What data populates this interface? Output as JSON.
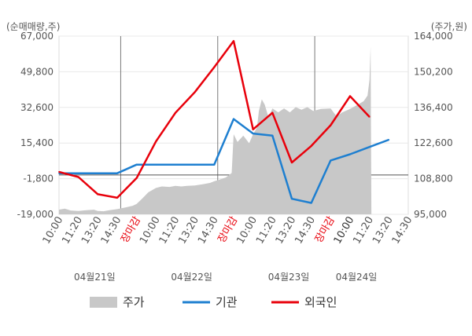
{
  "chart_data": {
    "type": "line",
    "left_unit_label": "(순매매량,주)",
    "right_unit_label": "(주가,원)",
    "left_axis": {
      "ticks": [
        "67,000",
        "49,800",
        "32,600",
        "15,400",
        "-1,800",
        "-19,000"
      ],
      "ylim": [
        -19000,
        67000
      ]
    },
    "right_axis": {
      "ticks": [
        "164,000",
        "150,200",
        "136,400",
        "122,600",
        "108,800",
        "95,000"
      ],
      "ylim": [
        95000,
        164000
      ]
    },
    "x_categories": [
      "10:00",
      "11:20",
      "13:20",
      "14:30",
      "장마감",
      "10:00",
      "11:20",
      "13:20",
      "14:30",
      "장마감",
      "10:00",
      "11:20",
      "13:20",
      "14:30",
      "장마감",
      "10:00",
      "11:20",
      "13:20",
      "14:30"
    ],
    "x_label_colors": [
      "#555555",
      "#555555",
      "#555555",
      "#555555",
      "#e8000b",
      "#555555",
      "#555555",
      "#555555",
      "#555555",
      "#e8000b",
      "#555555",
      "#555555",
      "#555555",
      "#555555",
      "#e8000b",
      "#333333",
      "#555555",
      "#555555",
      "#555555"
    ],
    "dates": [
      "04월21일",
      "04월22일",
      "04월23일",
      "04월24일"
    ],
    "series": [
      {
        "name": "기관",
        "color": "#1e7fd0",
        "axis": "left",
        "points": [
          [
            0,
            800
          ],
          [
            1,
            800
          ],
          [
            2,
            800
          ],
          [
            3,
            800
          ],
          [
            4,
            5000
          ],
          [
            5,
            5000
          ],
          [
            6,
            5000
          ],
          [
            7,
            5000
          ],
          [
            8,
            5000
          ],
          [
            9,
            27000
          ],
          [
            10,
            20000
          ],
          [
            11,
            19000
          ],
          [
            12,
            -11500
          ],
          [
            13,
            -13500
          ],
          [
            14,
            7000
          ],
          [
            15,
            10000
          ],
          [
            16,
            13500
          ],
          [
            17,
            17000
          ]
        ]
      },
      {
        "name": "외국인",
        "color": "#e8000b",
        "axis": "left",
        "points": [
          [
            0,
            1500
          ],
          [
            1,
            -1000
          ],
          [
            2,
            -9300
          ],
          [
            3,
            -11000
          ],
          [
            4,
            -1500
          ],
          [
            5,
            16200
          ],
          [
            6,
            30000
          ],
          [
            7,
            40000
          ],
          [
            8,
            52000
          ],
          [
            9,
            64600
          ],
          [
            10,
            22000
          ],
          [
            11,
            30000
          ],
          [
            12,
            6000
          ],
          [
            13,
            14000
          ],
          [
            14,
            24000
          ],
          [
            15,
            38000
          ],
          [
            16,
            28000
          ]
        ]
      },
      {
        "name": "주가",
        "color": "#c8c8c8",
        "axis": "right",
        "points": [
          [
            0,
            96800
          ],
          [
            0.3,
            97200
          ],
          [
            0.6,
            96500
          ],
          [
            1,
            96300
          ],
          [
            1.4,
            96600
          ],
          [
            1.8,
            96800
          ],
          [
            2,
            96300
          ],
          [
            2.3,
            96200
          ],
          [
            2.6,
            96600
          ],
          [
            3,
            97000
          ],
          [
            3.4,
            97600
          ],
          [
            3.8,
            98300
          ],
          [
            4,
            99000
          ],
          [
            4.3,
            101200
          ],
          [
            4.6,
            103500
          ],
          [
            5,
            105200
          ],
          [
            5.3,
            105800
          ],
          [
            5.7,
            105600
          ],
          [
            6,
            106000
          ],
          [
            6.3,
            105800
          ],
          [
            6.6,
            106000
          ],
          [
            7,
            106200
          ],
          [
            7.4,
            106600
          ],
          [
            7.8,
            107200
          ],
          [
            8,
            107800
          ],
          [
            8.3,
            108500
          ],
          [
            8.6,
            109300
          ],
          [
            8.9,
            111000
          ],
          [
            9,
            126000
          ],
          [
            9.2,
            123000
          ],
          [
            9.5,
            125500
          ],
          [
            9.8,
            122500
          ],
          [
            10,
            126000
          ],
          [
            10.2,
            128500
          ],
          [
            10.3,
            135000
          ],
          [
            10.45,
            139500
          ],
          [
            10.6,
            137500
          ],
          [
            10.8,
            132500
          ],
          [
            11,
            136000
          ],
          [
            11.3,
            134500
          ],
          [
            11.6,
            136000
          ],
          [
            11.9,
            134500
          ],
          [
            12.2,
            136500
          ],
          [
            12.5,
            135500
          ],
          [
            12.8,
            136500
          ],
          [
            13.1,
            135000
          ],
          [
            13.5,
            135800
          ],
          [
            14,
            136000
          ],
          [
            14.3,
            133000
          ],
          [
            14.6,
            134500
          ],
          [
            15,
            135800
          ],
          [
            15.4,
            137500
          ],
          [
            15.7,
            138800
          ],
          [
            15.9,
            141000
          ],
          [
            16,
            147000
          ],
          [
            16.06,
            160000
          ],
          [
            16.1,
            96000
          ]
        ]
      }
    ],
    "grid": true,
    "legend_position": "bottom"
  }
}
